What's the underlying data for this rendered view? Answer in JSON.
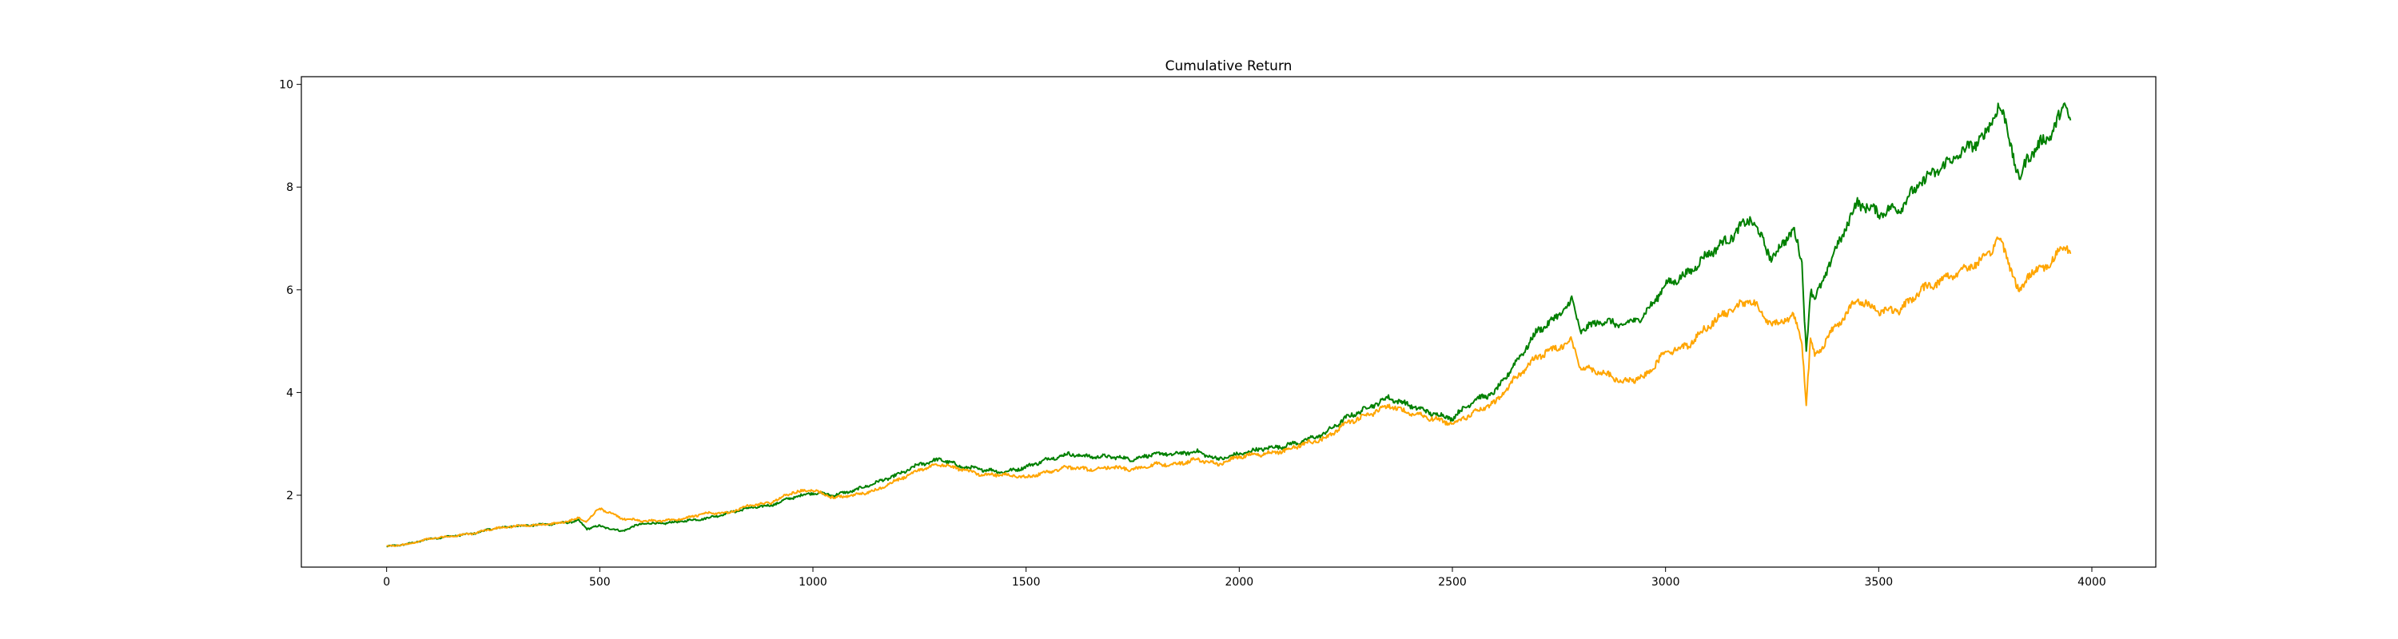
{
  "chart_data": {
    "type": "line",
    "title": "Cumulative Return",
    "xlabel": "",
    "ylabel": "",
    "xlim": [
      -200,
      4150
    ],
    "ylim": [
      0.6,
      10.15
    ],
    "xticks": [
      0,
      500,
      1000,
      1500,
      2000,
      2500,
      3000,
      3500,
      4000
    ],
    "yticks": [
      2,
      4,
      6,
      8,
      10
    ],
    "grid": false,
    "legend": "none",
    "series": [
      {
        "color": "#008000",
        "x": [
          0,
          50,
          100,
          150,
          200,
          250,
          300,
          350,
          400,
          450,
          470,
          500,
          550,
          600,
          650,
          700,
          750,
          800,
          850,
          900,
          950,
          1000,
          1050,
          1100,
          1150,
          1200,
          1250,
          1300,
          1350,
          1400,
          1450,
          1500,
          1550,
          1600,
          1650,
          1700,
          1750,
          1800,
          1850,
          1900,
          1950,
          2000,
          2050,
          2100,
          2150,
          2200,
          2250,
          2300,
          2350,
          2400,
          2450,
          2500,
          2550,
          2600,
          2650,
          2700,
          2750,
          2780,
          2800,
          2850,
          2900,
          2950,
          3000,
          3050,
          3100,
          3150,
          3200,
          3250,
          3300,
          3320,
          3330,
          3340,
          3350,
          3400,
          3450,
          3500,
          3550,
          3600,
          3650,
          3700,
          3750,
          3780,
          3800,
          3830,
          3850,
          3900,
          3940,
          3950
        ],
        "y": [
          1.0,
          1.05,
          1.15,
          1.2,
          1.25,
          1.35,
          1.4,
          1.42,
          1.45,
          1.5,
          1.35,
          1.4,
          1.3,
          1.45,
          1.45,
          1.5,
          1.55,
          1.65,
          1.75,
          1.8,
          1.95,
          2.05,
          2.0,
          2.1,
          2.25,
          2.4,
          2.6,
          2.7,
          2.55,
          2.5,
          2.45,
          2.55,
          2.7,
          2.8,
          2.75,
          2.75,
          2.7,
          2.8,
          2.8,
          2.85,
          2.7,
          2.8,
          2.9,
          2.95,
          3.05,
          3.2,
          3.5,
          3.7,
          3.9,
          3.75,
          3.6,
          3.5,
          3.85,
          4.0,
          4.6,
          5.2,
          5.5,
          5.8,
          5.2,
          5.4,
          5.3,
          5.5,
          6.1,
          6.3,
          6.7,
          7.0,
          7.4,
          6.6,
          7.2,
          6.5,
          4.8,
          6.0,
          5.8,
          6.8,
          7.7,
          7.5,
          7.6,
          8.1,
          8.4,
          8.7,
          9.0,
          9.6,
          9.2,
          8.1,
          8.6,
          9.0,
          9.6,
          9.3
        ]
      },
      {
        "color": "#FFA500",
        "x": [
          0,
          50,
          100,
          150,
          200,
          250,
          300,
          350,
          400,
          450,
          470,
          500,
          550,
          600,
          650,
          700,
          750,
          800,
          850,
          900,
          950,
          1000,
          1050,
          1100,
          1150,
          1200,
          1250,
          1300,
          1350,
          1400,
          1450,
          1500,
          1550,
          1600,
          1650,
          1700,
          1750,
          1800,
          1850,
          1900,
          1950,
          2000,
          2050,
          2100,
          2150,
          2200,
          2250,
          2300,
          2350,
          2400,
          2450,
          2500,
          2550,
          2600,
          2650,
          2700,
          2750,
          2780,
          2800,
          2850,
          2900,
          2950,
          3000,
          3050,
          3100,
          3150,
          3200,
          3250,
          3300,
          3320,
          3330,
          3340,
          3350,
          3400,
          3450,
          3500,
          3550,
          3600,
          3650,
          3700,
          3750,
          3780,
          3800,
          3830,
          3850,
          3900,
          3940,
          3950
        ],
        "y": [
          1.0,
          1.05,
          1.15,
          1.2,
          1.25,
          1.35,
          1.4,
          1.42,
          1.45,
          1.55,
          1.5,
          1.75,
          1.55,
          1.5,
          1.5,
          1.55,
          1.65,
          1.65,
          1.8,
          1.85,
          2.05,
          2.1,
          1.95,
          2.0,
          2.1,
          2.3,
          2.5,
          2.6,
          2.5,
          2.4,
          2.4,
          2.35,
          2.45,
          2.55,
          2.5,
          2.55,
          2.5,
          2.6,
          2.6,
          2.7,
          2.6,
          2.75,
          2.8,
          2.85,
          3.0,
          3.1,
          3.4,
          3.55,
          3.75,
          3.6,
          3.5,
          3.4,
          3.6,
          3.8,
          4.3,
          4.7,
          4.9,
          5.0,
          4.5,
          4.4,
          4.2,
          4.3,
          4.8,
          4.9,
          5.3,
          5.6,
          5.8,
          5.3,
          5.5,
          5.0,
          3.8,
          5.0,
          4.7,
          5.3,
          5.8,
          5.6,
          5.6,
          6.0,
          6.2,
          6.4,
          6.6,
          7.0,
          6.7,
          5.9,
          6.3,
          6.5,
          6.9,
          6.7
        ]
      }
    ]
  }
}
